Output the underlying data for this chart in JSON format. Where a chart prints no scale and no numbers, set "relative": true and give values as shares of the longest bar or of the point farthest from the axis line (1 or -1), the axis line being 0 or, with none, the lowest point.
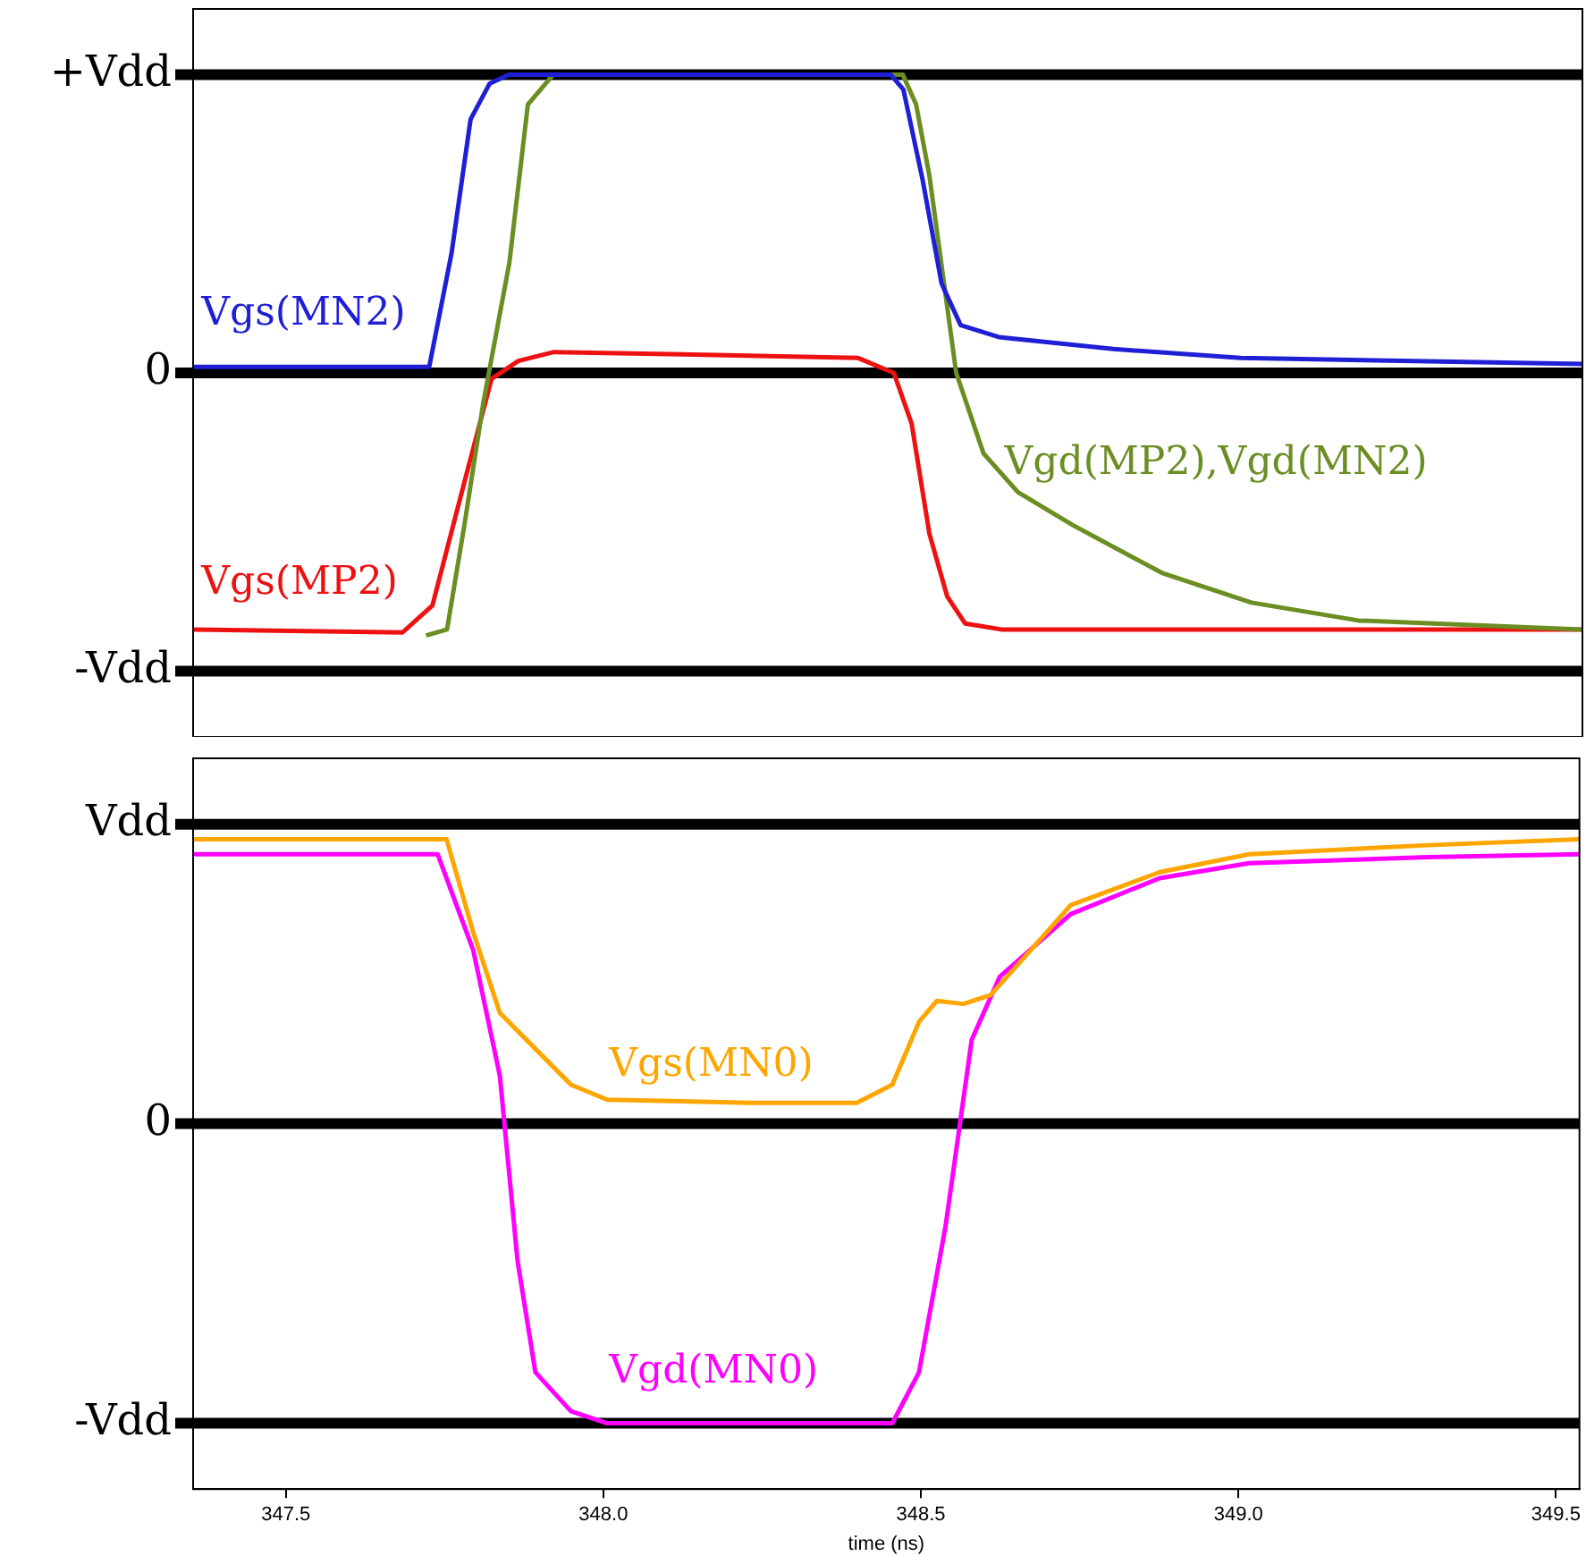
{
  "chart_data": [
    {
      "type": "line",
      "relative": true,
      "xlim": [
        347.354,
        349.537
      ],
      "tick_labels": "y",
      "legend": false,
      "marker": "none",
      "line_style": "solid",
      "ref_lines": [
        {
          "axis": "y",
          "value": 1,
          "label": "+Vdd",
          "color": "#000000"
        },
        {
          "axis": "y",
          "value": 0,
          "label": "0",
          "color": "#000000"
        },
        {
          "axis": "y",
          "value": -1,
          "label": "-Vdd",
          "color": "#000000"
        }
      ],
      "series": [
        {
          "name": "Vgs(MN2)",
          "color": "#1f1fd6",
          "x": [
            347.354,
            347.725,
            347.76,
            347.79,
            347.82,
            347.85,
            348.45,
            348.47,
            348.5,
            348.53,
            348.56,
            348.62,
            348.8,
            349.0,
            349.537
          ],
          "values": [
            0.02,
            0.02,
            0.4,
            0.85,
            0.97,
            1.0,
            1.0,
            0.95,
            0.65,
            0.3,
            0.16,
            0.12,
            0.08,
            0.05,
            0.03
          ]
        },
        {
          "name": "Vgd(MP2),Vgd(MN2)",
          "color": "#6b8e23",
          "x": [
            347.72,
            347.753,
            347.781,
            347.81,
            347.851,
            347.88,
            347.92,
            348.469,
            348.49,
            348.511,
            348.553,
            348.596,
            348.65,
            348.736,
            348.876,
            349.017,
            349.185,
            349.537
          ],
          "values": [
            -0.88,
            -0.86,
            -0.5,
            -0.1,
            0.37,
            0.9,
            1.0,
            1.0,
            0.9,
            0.66,
            0.0,
            -0.27,
            -0.4,
            -0.51,
            -0.67,
            -0.77,
            -0.83,
            -0.86
          ]
        },
        {
          "name": "Vgs(MP2)",
          "color": "#ee1111",
          "x": [
            347.354,
            347.683,
            347.73,
            347.781,
            347.823,
            347.865,
            347.921,
            348.174,
            348.399,
            348.455,
            348.483,
            348.511,
            348.539,
            348.567,
            348.624,
            349.537
          ],
          "values": [
            -0.86,
            -0.87,
            -0.78,
            -0.36,
            -0.02,
            0.04,
            0.07,
            0.06,
            0.05,
            0.0,
            -0.17,
            -0.54,
            -0.75,
            -0.84,
            -0.86,
            -0.86
          ]
        }
      ]
    },
    {
      "type": "line",
      "relative": true,
      "xlabel": "time (ns)",
      "xlim": [
        347.354,
        349.537
      ],
      "xticks": [
        {
          "value": 347.5,
          "label": "347.5"
        },
        {
          "value": 348,
          "label": "348.0"
        },
        {
          "value": 348.5,
          "label": "348.5"
        },
        {
          "value": 349,
          "label": "349.0"
        },
        {
          "value": 349.5,
          "label": "349.5"
        }
      ],
      "legend": false,
      "marker": "none",
      "line_style": "solid",
      "ref_lines": [
        {
          "axis": "y",
          "value": 1,
          "label": "Vdd",
          "color": "#000000"
        },
        {
          "axis": "y",
          "value": 0,
          "label": "0",
          "color": "#000000"
        },
        {
          "axis": "y",
          "value": -1,
          "label": "-Vdd",
          "color": "#000000"
        }
      ],
      "series": [
        {
          "name": "Vgs(MN0)",
          "color": "#ffa500",
          "x": [
            347.354,
            347.753,
            347.795,
            347.837,
            347.893,
            347.949,
            348.006,
            348.23,
            348.399,
            348.455,
            348.497,
            348.525,
            348.567,
            348.61,
            348.736,
            348.876,
            349.017,
            349.298,
            349.537
          ],
          "values": [
            0.95,
            0.95,
            0.64,
            0.37,
            0.25,
            0.13,
            0.08,
            0.07,
            0.07,
            0.13,
            0.34,
            0.41,
            0.4,
            0.43,
            0.73,
            0.84,
            0.9,
            0.93,
            0.95
          ]
        },
        {
          "name": "Vgd(MN0)",
          "color": "#ff00ff",
          "x": [
            347.354,
            347.739,
            347.795,
            347.837,
            347.865,
            347.893,
            347.949,
            348.006,
            348.455,
            348.497,
            348.539,
            348.58,
            348.624,
            348.736,
            348.876,
            349.017,
            349.298,
            349.537
          ],
          "values": [
            0.9,
            0.9,
            0.58,
            0.16,
            -0.46,
            -0.83,
            -0.96,
            -1.0,
            -1.0,
            -0.83,
            -0.34,
            0.28,
            0.49,
            0.7,
            0.82,
            0.87,
            0.89,
            0.9
          ]
        }
      ]
    }
  ]
}
